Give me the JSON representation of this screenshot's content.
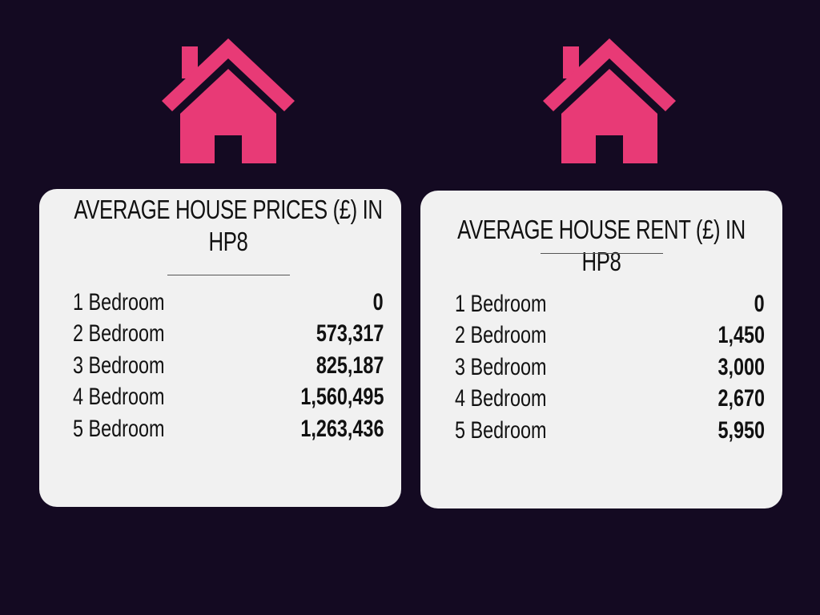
{
  "colors": {
    "background": "#140a22",
    "card": "#f1f1f1",
    "house": "#e83a76",
    "text": "#111111"
  },
  "icons": {
    "house": "house-icon"
  },
  "prices": {
    "title": "AVERAGE HOUSE PRICES (£) IN HP8",
    "rows": [
      {
        "label": "1 Bedroom",
        "value": "0"
      },
      {
        "label": "2 Bedroom",
        "value": "573,317"
      },
      {
        "label": "3 Bedroom",
        "value": "825,187"
      },
      {
        "label": "4 Bedroom",
        "value": "1,560,495"
      },
      {
        "label": "5 Bedroom",
        "value": "1,263,436"
      }
    ]
  },
  "rent": {
    "title": "AVERAGE HOUSE RENT (£) IN HP8",
    "rows": [
      {
        "label": "1 Bedroom",
        "value": "0"
      },
      {
        "label": "2 Bedroom",
        "value": "1,450"
      },
      {
        "label": "3 Bedroom",
        "value": "3,000"
      },
      {
        "label": "4 Bedroom",
        "value": "2,670"
      },
      {
        "label": "5 Bedroom",
        "value": "5,950"
      }
    ]
  }
}
